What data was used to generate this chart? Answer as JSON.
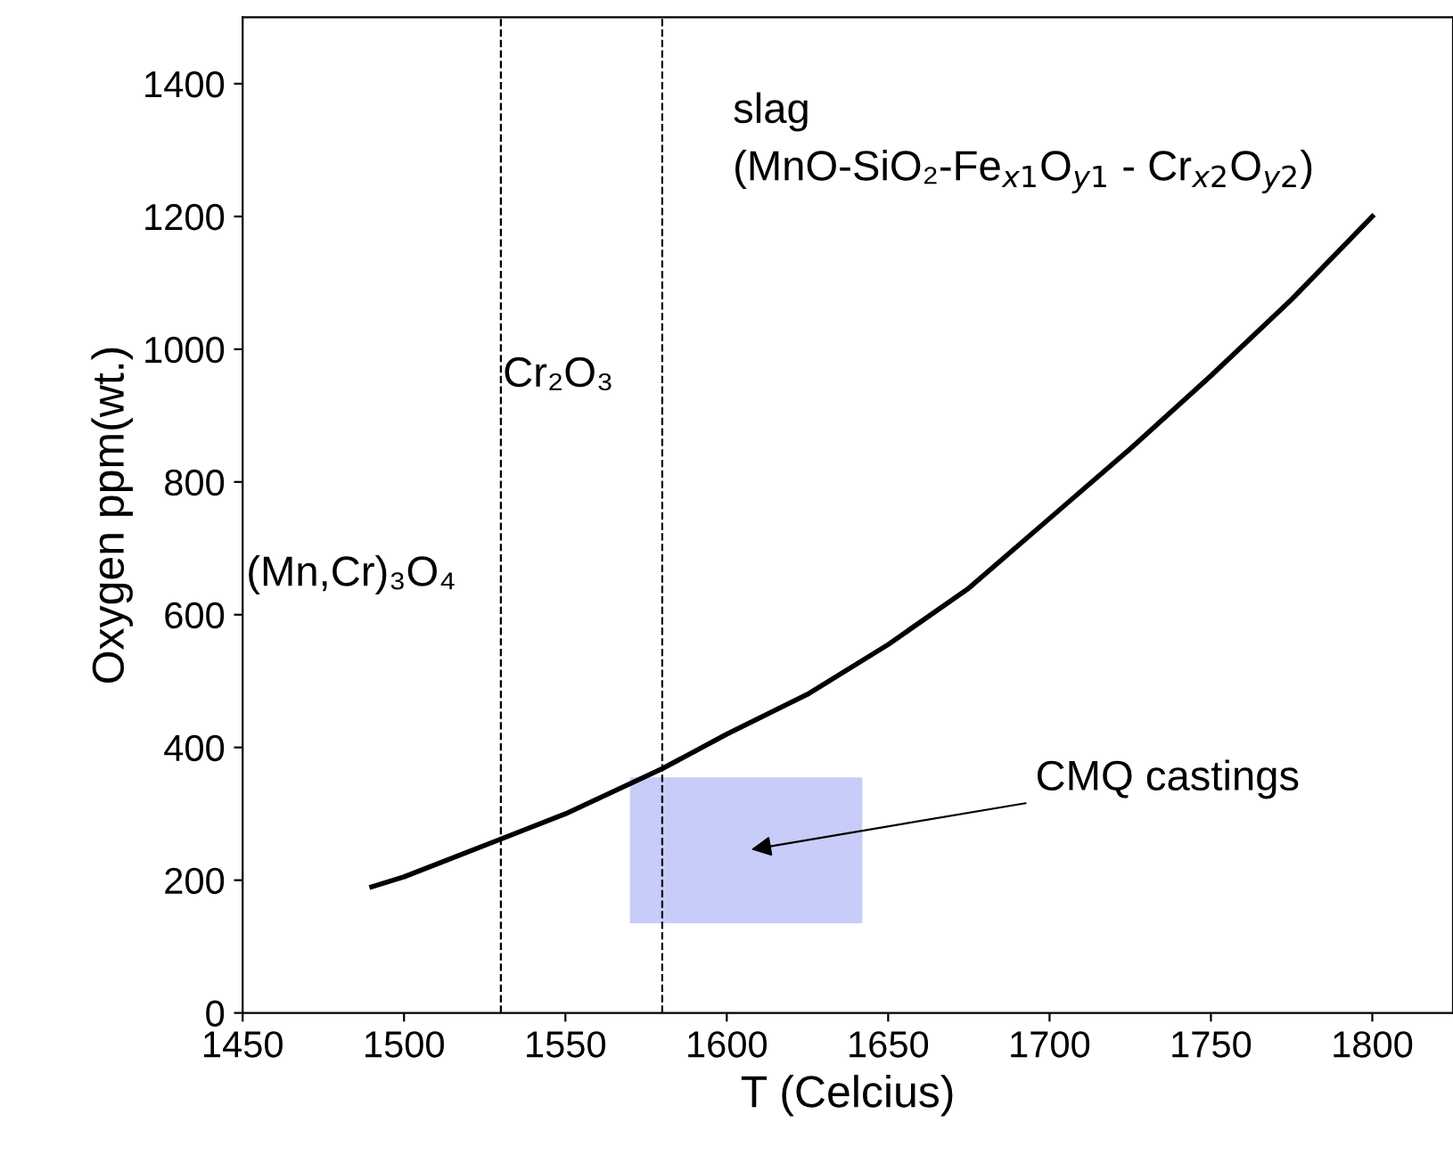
{
  "chart_data": {
    "type": "line",
    "xlabel": "T (Celcius)",
    "ylabel": "Oxygen ppm(wt.)",
    "xlim": [
      1450,
      1825
    ],
    "xticks": [
      1450,
      1500,
      1550,
      1600,
      1650,
      1700,
      1750,
      1800
    ],
    "ylim": [
      0,
      1500
    ],
    "yticks": [
      0,
      200,
      400,
      600,
      800,
      1000,
      1200,
      1400
    ],
    "grid": false,
    "marker": "none",
    "line_style": "solid",
    "series": [
      {
        "color": "#000000",
        "x": [
          1490,
          1500,
          1530,
          1550,
          1580,
          1600,
          1625,
          1650,
          1675,
          1700,
          1725,
          1750,
          1775,
          1800
        ],
        "values": [
          190,
          205,
          262,
          300,
          368,
          420,
          480,
          555,
          640,
          745,
          850,
          960,
          1075,
          1200
        ]
      },
      {
        "color": "#c8ccf8",
        "x": [
          1570,
          1642
        ],
        "values": [
          null,
          null
        ],
        "lower": [
          135,
          135
        ],
        "upper": [
          355,
          355
        ]
      }
    ],
    "ref_lines": [
      {
        "axis": "x",
        "value": 1530,
        "color": "#000000",
        "line_style": "dashed"
      },
      {
        "axis": "x",
        "value": 1580,
        "color": "#000000",
        "line_style": "dashed"
      }
    ],
    "annotations": [
      "slag",
      "(MnO-SiO₂-Fe$_{x1}$O$_{y1}$ - Cr$_{x2}$O$_{y2}$)",
      "Cr₂O₃",
      "(Mn,Cr)₃O₄",
      "CMQ castings"
    ]
  }
}
